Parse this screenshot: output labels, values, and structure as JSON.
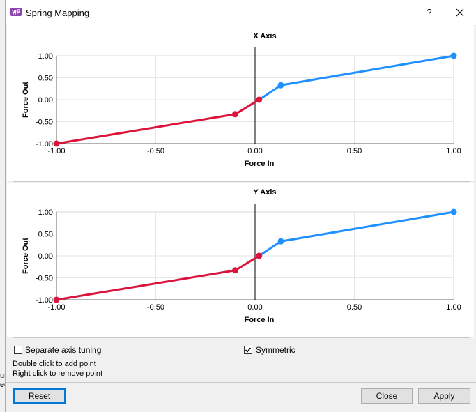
{
  "window": {
    "title": "Spring Mapping",
    "help_label": "?"
  },
  "background_fragments": [
    "ur",
    "ed"
  ],
  "colors": {
    "negative": "#dc143c",
    "positive": "#1e90ff",
    "grid": "#e6e6e6",
    "axis": "#000000"
  },
  "charts": {
    "x_axis": {
      "type": "line",
      "title": "X Axis",
      "xlabel": "Force In",
      "ylabel": "Force Out",
      "xlim": [
        -1,
        1
      ],
      "ylim": [
        -1,
        1
      ],
      "xticks": [
        "-1.00",
        "-0.50",
        "0.00",
        "0.50",
        "1.00"
      ],
      "yticks": [
        "1.00",
        "0.50",
        "0.00",
        "-0.50",
        "-1.00"
      ],
      "grid": true,
      "series": [
        {
          "color": "#dc143c",
          "points": [
            [
              -1.0,
              -1.0
            ],
            [
              -0.1,
              -0.33
            ],
            [
              0.02,
              0.0
            ]
          ]
        },
        {
          "color": "#1e90ff",
          "points": [
            [
              0.02,
              0.0
            ],
            [
              0.13,
              0.33
            ],
            [
              1.0,
              1.0
            ]
          ]
        }
      ]
    },
    "y_axis": {
      "type": "line",
      "title": "Y Axis",
      "xlabel": "Force In",
      "ylabel": "Force Out",
      "xlim": [
        -1,
        1
      ],
      "ylim": [
        -1,
        1
      ],
      "xticks": [
        "-1.00",
        "-0.50",
        "0.00",
        "0.50",
        "1.00"
      ],
      "yticks": [
        "1.00",
        "0.50",
        "0.00",
        "-0.50",
        "-1.00"
      ],
      "grid": true,
      "series": [
        {
          "color": "#dc143c",
          "points": [
            [
              -1.0,
              -1.0
            ],
            [
              -0.1,
              -0.33
            ],
            [
              0.02,
              0.0
            ]
          ]
        },
        {
          "color": "#1e90ff",
          "points": [
            [
              0.02,
              0.0
            ],
            [
              0.13,
              0.33
            ],
            [
              1.0,
              1.0
            ]
          ]
        }
      ]
    }
  },
  "chart_data": [
    {
      "type": "line",
      "title": "X Axis",
      "xlabel": "Force In",
      "ylabel": "Force Out",
      "xlim": [
        -1,
        1
      ],
      "ylim": [
        -1,
        1
      ],
      "grid": true,
      "x": [
        -1.0,
        -0.1,
        0.02,
        0.13,
        1.0
      ],
      "y": [
        -1.0,
        -0.33,
        0.0,
        0.33,
        1.0
      ]
    },
    {
      "type": "line",
      "title": "Y Axis",
      "xlabel": "Force In",
      "ylabel": "Force Out",
      "xlim": [
        -1,
        1
      ],
      "ylim": [
        -1,
        1
      ],
      "grid": true,
      "x": [
        -1.0,
        -0.1,
        0.02,
        0.13,
        1.0
      ],
      "y": [
        -1.0,
        -0.33,
        0.0,
        0.33,
        1.0
      ]
    }
  ],
  "options": {
    "separate_axis": {
      "label": "Separate axis tuning",
      "checked": false
    },
    "symmetric": {
      "label": "Symmetric",
      "checked": true
    }
  },
  "hints": {
    "add": "Double click to add point",
    "remove": "Right click to remove point"
  },
  "buttons": {
    "reset": "Reset",
    "close": "Close",
    "apply": "Apply"
  }
}
